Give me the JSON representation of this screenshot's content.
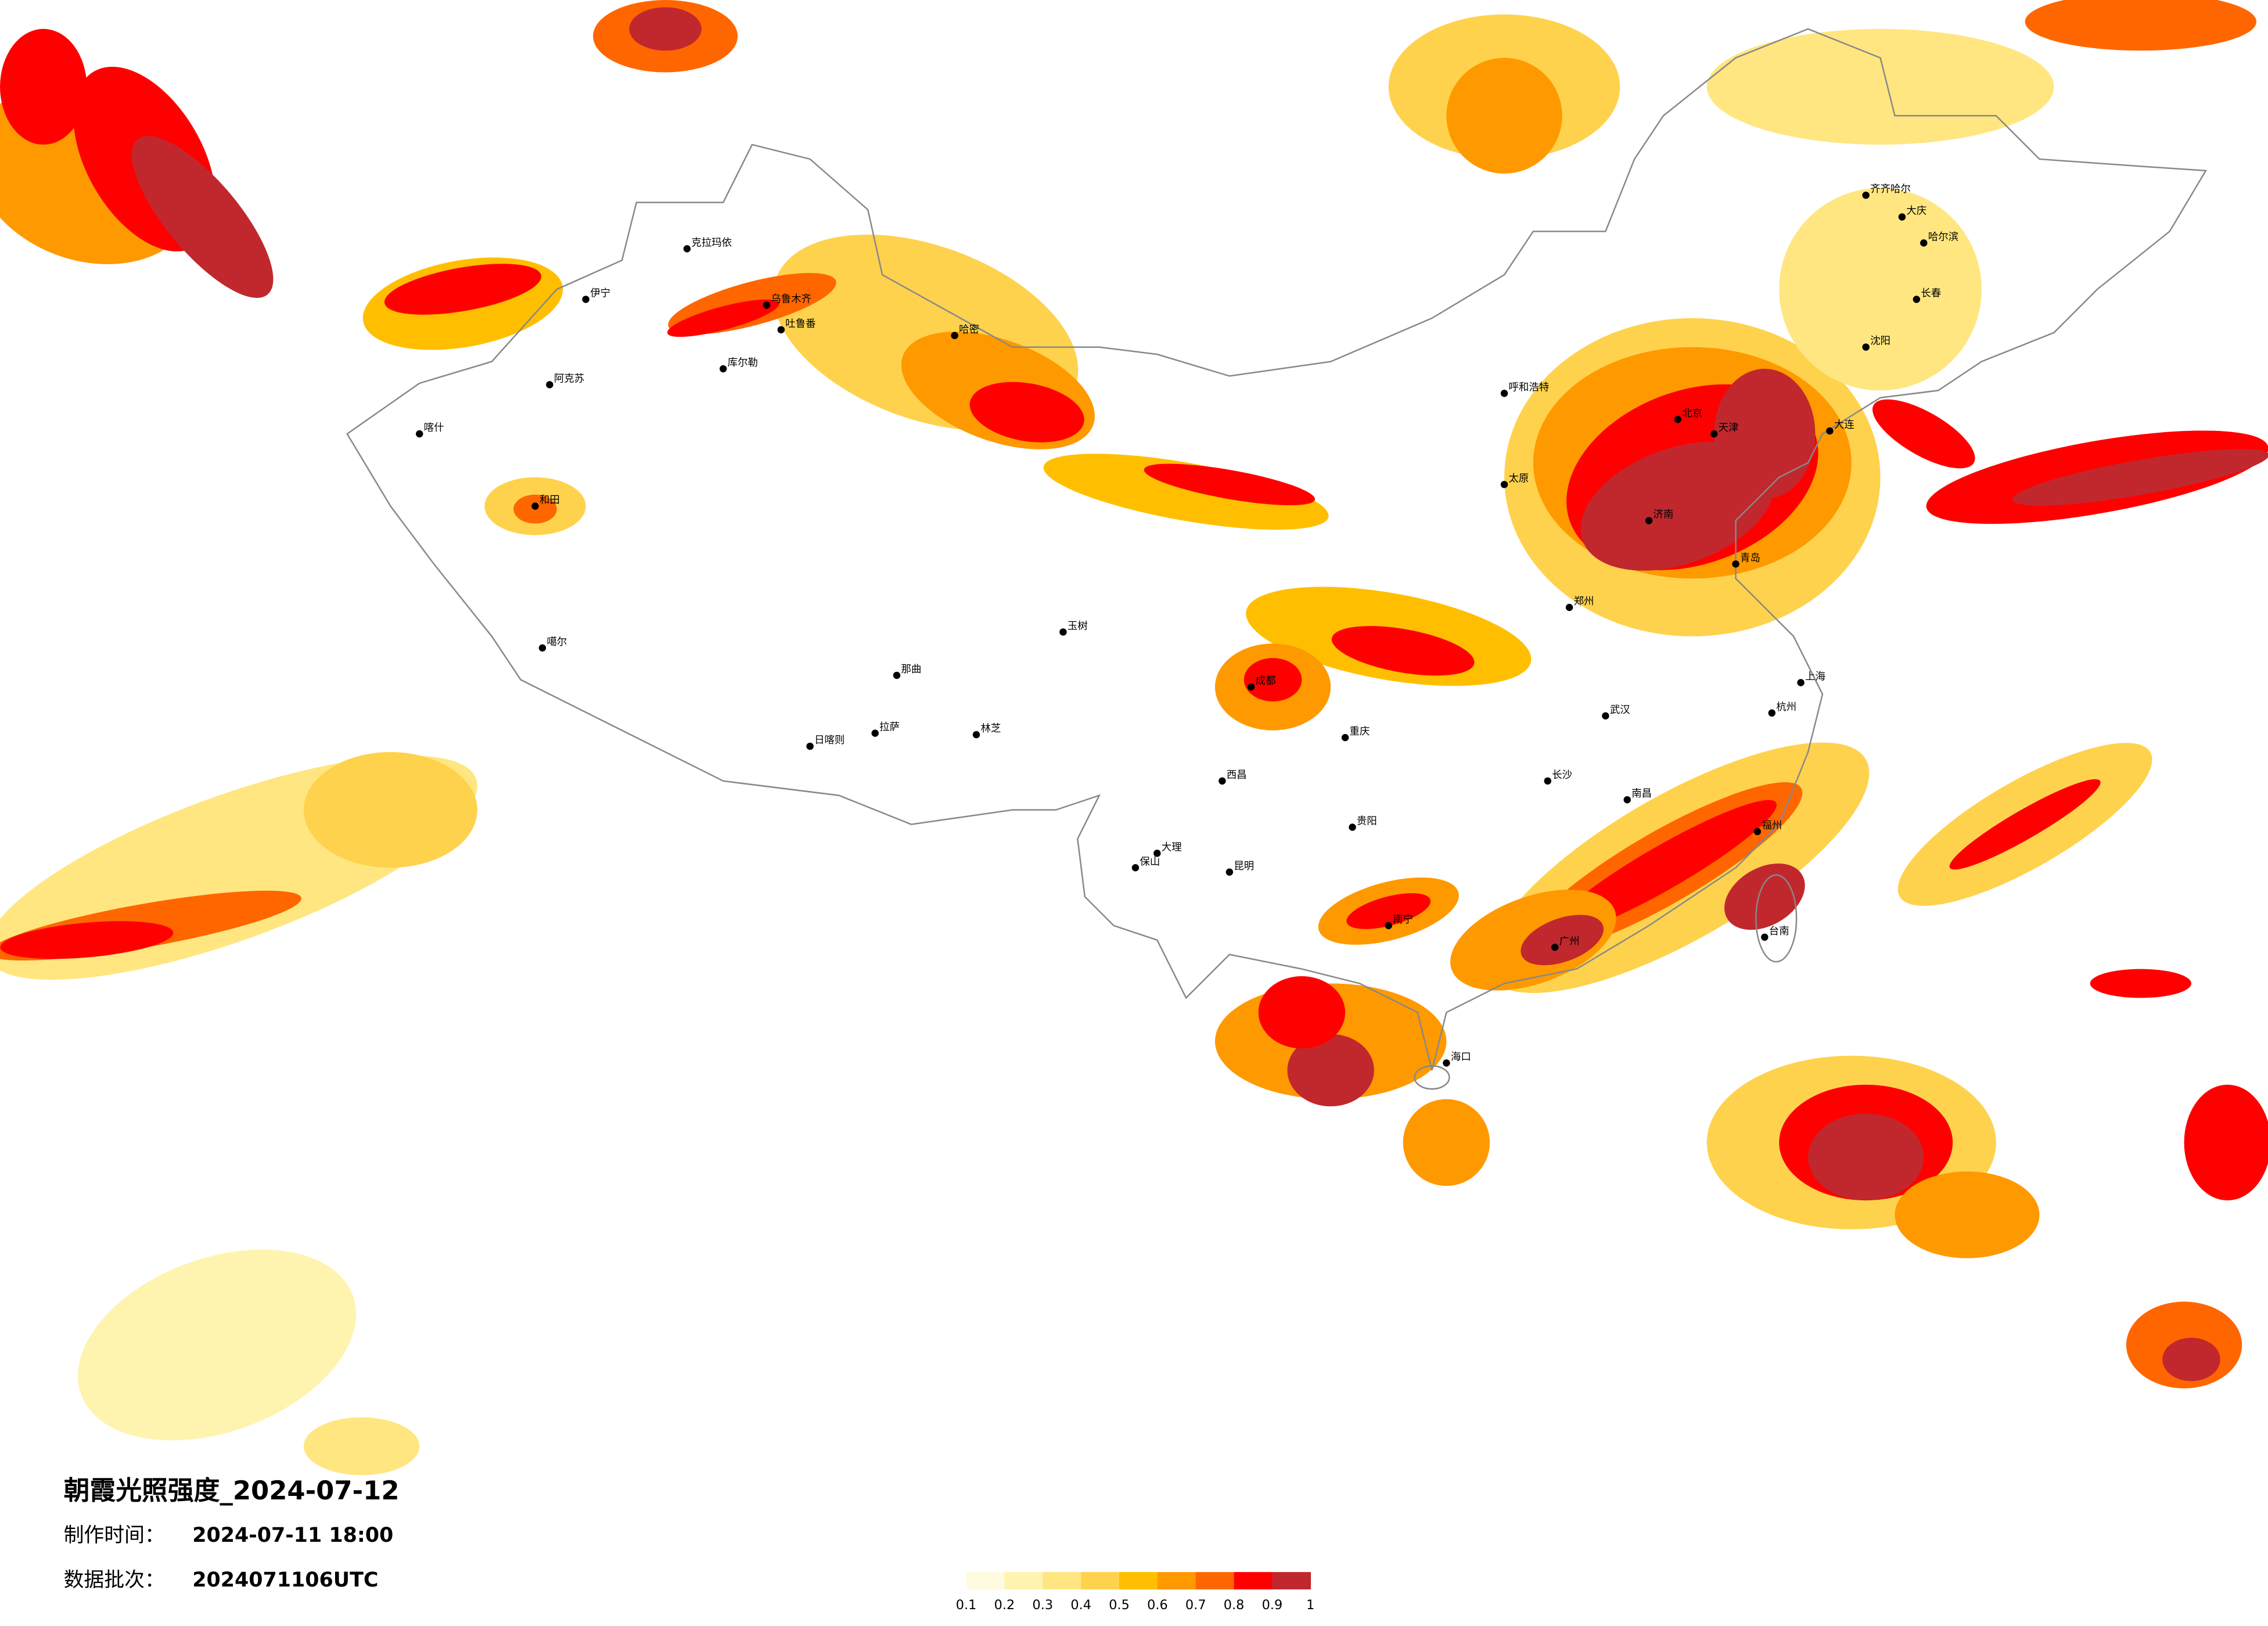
{
  "title": "朝霞光照强度_2024-07-12",
  "made_label": "制作时间：",
  "made_time": "2024-07-11 18:00",
  "batch_label": "数据批次：",
  "batch": "2024071106UTC",
  "legend": {
    "ticks": [
      0.1,
      0.2,
      0.3,
      0.4,
      0.5,
      0.6,
      0.7,
      0.8,
      0.9,
      1
    ],
    "colors": [
      "#fffbe0",
      "#fff3b0",
      "#ffe680",
      "#ffd24d",
      "#ffbf00",
      "#ff9900",
      "#ff6600",
      "#ff0000",
      "#c0282e"
    ]
  },
  "cities": [
    "克拉玛依",
    "伊宁",
    "阿克苏",
    "喀什",
    "和田",
    "库尔勒",
    "吐鲁番",
    "乌鲁木齐",
    "哈密",
    "拉萨",
    "日喀则",
    "那曲",
    "林芝",
    "噶尔",
    "玉树",
    "呼和浩特",
    "北京",
    "天津",
    "哈尔滨",
    "长春",
    "沈阳",
    "大连",
    "齐齐哈尔",
    "大庆",
    "上海",
    "杭州",
    "南昌",
    "长沙",
    "武汉",
    "广州",
    "福州",
    "台南",
    "重庆",
    "成都",
    "贵阳",
    "昆明",
    "南宁",
    "郑州",
    "济南",
    "青岛",
    "太原",
    "大理",
    "保山",
    "西昌",
    "海口"
  ]
}
